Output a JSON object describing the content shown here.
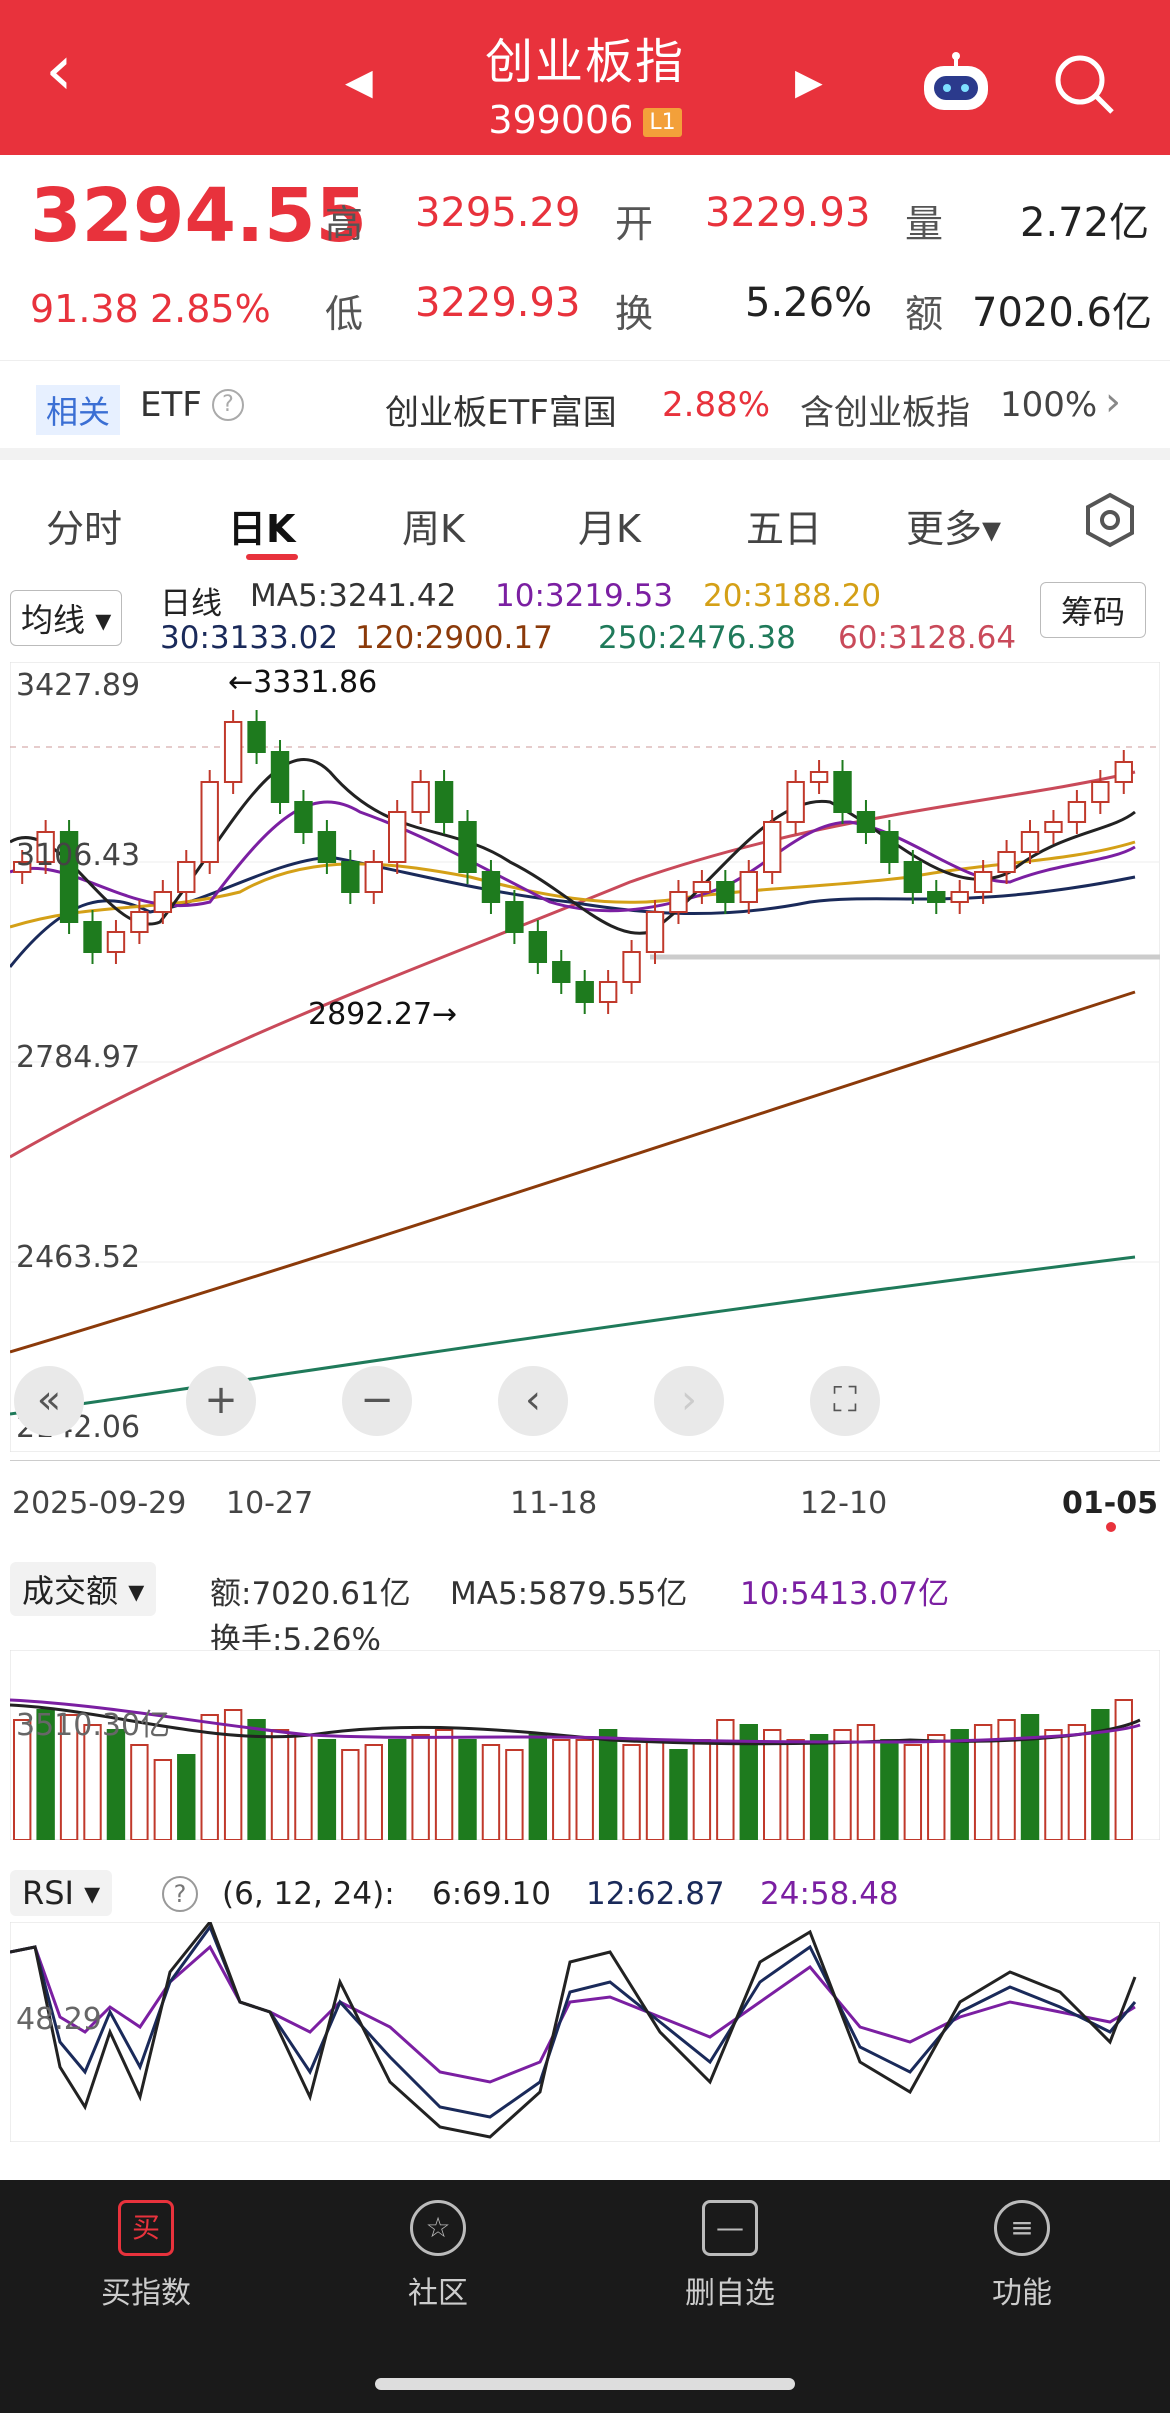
{
  "header": {
    "title": "创业板指",
    "code": "399006",
    "level": "L1",
    "back": "‹",
    "prev": "◀",
    "next": "▶"
  },
  "quote": {
    "price": "3294.55",
    "change": "91.38",
    "change_pct": "2.85%",
    "high_label": "高",
    "high": "3295.29",
    "open_label": "开",
    "open": "3229.93",
    "vol_label": "量",
    "vol": "2.72亿",
    "low_label": "低",
    "low": "3229.93",
    "turn_label": "换",
    "turn": "5.26%",
    "amt_label": "额",
    "amt": "7020.6亿"
  },
  "etf": {
    "tag": "相关",
    "label": "ETF",
    "name": "创业板ETF富国",
    "pct": "2.88%",
    "contains": "含创业板指",
    "contains_pct": "100%"
  },
  "tabs": [
    "分时",
    "日K",
    "周K",
    "月K",
    "五日",
    "更多▾"
  ],
  "kline": {
    "ma_selector": "均线",
    "period": "日线",
    "ma5": "MA5:3241.42",
    "ma10": "10:3219.53",
    "ma20": "20:3188.20",
    "ma30": "30:3133.02",
    "ma120": "120:2900.17",
    "ma250": "250:2476.38",
    "ma60": "60:3128.64",
    "chip_button": "筹码",
    "y_labels": [
      "3427.89",
      "3106.43",
      "2784.97",
      "2463.52",
      "2142.06"
    ],
    "x_labels": [
      "2025-09-29",
      "10-27",
      "11-18",
      "12-10",
      "01-05"
    ],
    "max_marker": "←3331.86",
    "min_marker": "2892.27→"
  },
  "volume": {
    "selector": "成交额",
    "amount": "额:7020.61亿",
    "ma5": "MA5:5879.55亿",
    "ma10": "10:5413.07亿",
    "turnover": "换手:5.26%",
    "y_label": "3510.30亿"
  },
  "rsi": {
    "selector": "RSI",
    "help": "?",
    "params": "(6, 12, 24):",
    "r6": "6:69.10",
    "r12": "12:62.87",
    "r24": "24:58.48",
    "y_label": "48.29"
  },
  "nav": [
    {
      "icon": "买",
      "label": "买指数"
    },
    {
      "icon": "☆",
      "label": "社区"
    },
    {
      "icon": "—",
      "label": "删自选"
    },
    {
      "icon": "≡",
      "label": "功能"
    }
  ],
  "colors": {
    "up": "#c0392b",
    "down": "#1e7b1e",
    "header": "#e8323c"
  }
}
